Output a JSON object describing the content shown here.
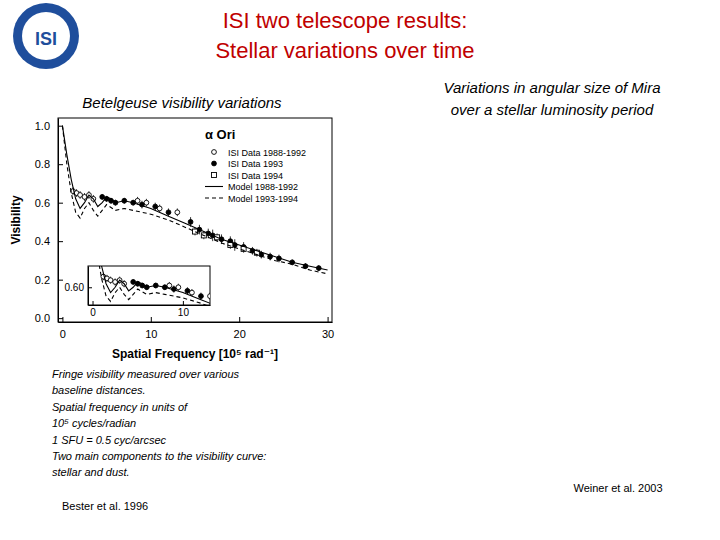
{
  "slide": {
    "title": [
      "ISI two telescope results:",
      "Stellar variations over time"
    ],
    "logo_text": "ISI",
    "left_heading": "Betelgeuse visibility variations",
    "right_heading": [
      "Variations in angular size of Mira",
      "over a stellar luminosity period"
    ],
    "caption": [
      "Fringe visibility measured over various",
      "baseline distances.",
      "Spatial frequency in units of",
      "10⁵ cycles/radian",
      "1 SFU = 0.5 cyc/arcsec",
      "Two main components to the visibility curve:",
      "stellar and dust."
    ],
    "left_citation": "Bester et al. 1996",
    "right_citation": "Weiner et al. 2003"
  },
  "chart_data": [
    {
      "type": "scatter",
      "title": "α Ori",
      "x_label": "Spatial Frequency [10⁵ rad⁻¹]",
      "y_label": "Visibility",
      "xlim": [
        -0.5,
        30.5
      ],
      "xticks": [
        0,
        10,
        20,
        30
      ],
      "ylim": [
        -0.02,
        1.04
      ],
      "yticks": [
        {
          "value": 0,
          "label": "0.0"
        },
        {
          "value": 0.2,
          "label": "0.2"
        },
        {
          "value": 0.4,
          "label": "0.4"
        },
        {
          "value": 0.6,
          "label": "0.6"
        },
        {
          "value": 0.8,
          "label": "0.8"
        },
        {
          "value": 1,
          "label": "1.0"
        }
      ],
      "legend": "top right",
      "series": [
        {
          "name": "ISI Data 1988-1992",
          "type": "scatter",
          "marker": "open-circle",
          "color": "#000000",
          "x": [
            1.2,
            1.6,
            2.0,
            2.5,
            3.0,
            3.5,
            8.5,
            9.5,
            11.0,
            13.0
          ],
          "values": [
            0.66,
            0.65,
            0.64,
            0.63,
            0.64,
            0.62,
            0.61,
            0.6,
            0.57,
            0.55
          ],
          "errors": [
            0.02,
            0.02,
            0.02,
            0.02,
            0.02,
            0.02,
            0.02,
            0.02,
            0.02,
            0.02
          ]
        },
        {
          "name": "ISI Data 1993",
          "type": "scatter",
          "marker": "filled-circle",
          "color": "#000000",
          "x": [
            4.5,
            5.0,
            5.5,
            6.0,
            7.0,
            8.0,
            9.0,
            10.5,
            12.0,
            14.5,
            15.5,
            16.5,
            17.0,
            18.0,
            19.0,
            19.5,
            20.5,
            21.5,
            22.5,
            23.5,
            24.5,
            26.0,
            27.5,
            29.0
          ],
          "values": [
            0.63,
            0.62,
            0.61,
            0.6,
            0.61,
            0.6,
            0.59,
            0.58,
            0.55,
            0.5,
            0.46,
            0.44,
            0.43,
            0.41,
            0.4,
            0.38,
            0.37,
            0.35,
            0.33,
            0.32,
            0.31,
            0.29,
            0.27,
            0.26
          ],
          "errors": [
            0.015,
            0.015,
            0.015,
            0.015,
            0.015,
            0.015,
            0.02,
            0.02,
            0.02,
            0.025,
            0.025,
            0.025,
            0.03,
            0.025,
            0.025,
            0.03,
            0.025,
            0.02,
            0.02,
            0.02,
            0.02,
            0.015,
            0.015,
            0.015
          ]
        },
        {
          "name": "ISI Data 1994",
          "type": "scatter",
          "marker": "open-square",
          "color": "#000000",
          "x": [
            15.0,
            16.0,
            17.5,
            19.0,
            20.5,
            22.0
          ],
          "values": [
            0.45,
            0.43,
            0.42,
            0.38,
            0.36,
            0.34
          ],
          "errors": [
            0.02,
            0.02,
            0.02,
            0.02,
            0.02,
            0.02
          ]
        },
        {
          "name": "Model 1988-1992",
          "type": "line",
          "line_style": "solid",
          "color": "#000000",
          "x": [
            0,
            0.5,
            1,
            1.5,
            2,
            2.5,
            3,
            3.5,
            4,
            4.5,
            5,
            5.5,
            6,
            7,
            8,
            10,
            12,
            14,
            16,
            18,
            20,
            22,
            24,
            26,
            28,
            30
          ],
          "values": [
            1.0,
            0.85,
            0.72,
            0.62,
            0.57,
            0.6,
            0.64,
            0.62,
            0.58,
            0.6,
            0.63,
            0.62,
            0.6,
            0.61,
            0.6,
            0.57,
            0.53,
            0.49,
            0.45,
            0.41,
            0.38,
            0.35,
            0.32,
            0.29,
            0.27,
            0.25
          ]
        },
        {
          "name": "Model 1993-1994",
          "type": "line",
          "line_style": "dashed",
          "color": "#000000",
          "x": [
            0,
            0.5,
            1,
            1.5,
            2,
            2.5,
            3,
            3.5,
            4,
            4.5,
            5,
            6,
            7,
            8,
            10,
            12,
            14,
            16,
            18,
            20,
            22,
            24,
            26,
            28,
            30
          ],
          "values": [
            1.0,
            0.8,
            0.65,
            0.55,
            0.52,
            0.57,
            0.6,
            0.56,
            0.53,
            0.56,
            0.59,
            0.56,
            0.57,
            0.56,
            0.54,
            0.51,
            0.47,
            0.43,
            0.39,
            0.36,
            0.33,
            0.3,
            0.28,
            0.25,
            0.23
          ]
        }
      ]
    },
    {
      "type": "line",
      "xlim": [
        -0.5,
        13
      ],
      "xticks": [
        0,
        10
      ],
      "ylim": [
        0.5,
        0.72
      ],
      "yticks": [
        {
          "value": 0.6,
          "label": "0.60"
        }
      ]
    }
  ]
}
